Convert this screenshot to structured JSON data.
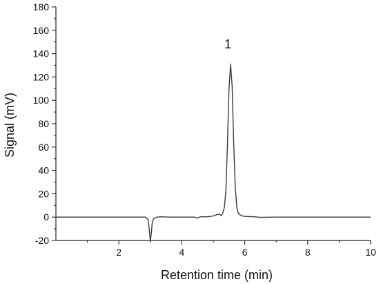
{
  "chart_data": {
    "type": "line",
    "title": "",
    "xlabel": "Retention time (min)",
    "ylabel": "Signal (mV)",
    "xlim": [
      0,
      10
    ],
    "ylim": [
      -20,
      180
    ],
    "x_ticks": [
      2,
      4,
      6,
      8,
      10
    ],
    "y_ticks": [
      -20,
      0,
      20,
      40,
      60,
      80,
      100,
      120,
      140,
      160,
      180
    ],
    "x_ticks_minor_step": 1,
    "y_ticks_minor_step": 10,
    "grid": false,
    "legend": "none",
    "line_color": "#3a3a3a",
    "annotations": [
      {
        "text": "1",
        "x": 5.55,
        "y": 148
      }
    ],
    "series": [
      {
        "x": [
          0.0,
          0.5,
          1.0,
          1.5,
          2.0,
          2.5,
          2.85,
          2.93,
          2.97,
          3.0,
          3.03,
          3.06,
          3.1,
          3.2,
          3.35,
          3.6,
          4.0,
          4.4,
          4.5,
          4.6,
          4.8,
          5.0,
          5.1,
          5.2,
          5.25,
          5.3,
          5.35,
          5.4,
          5.45,
          5.5,
          5.55,
          5.6,
          5.65,
          5.7,
          5.75,
          5.8,
          5.9,
          6.0,
          6.3,
          6.5,
          7.0,
          8.0,
          9.0,
          10.0
        ],
        "y": [
          0,
          0,
          0,
          0,
          0,
          0,
          0,
          -2,
          -12,
          -21,
          -14,
          -5,
          -1.5,
          0,
          0.3,
          0,
          0,
          0,
          -0.8,
          0.4,
          0.2,
          1.0,
          2.0,
          2.5,
          1.2,
          3.5,
          8,
          22,
          62,
          110,
          131,
          112,
          62,
          25,
          8,
          3,
          1.2,
          0.6,
          0.3,
          -0.2,
          0,
          0,
          0,
          0
        ]
      }
    ]
  }
}
